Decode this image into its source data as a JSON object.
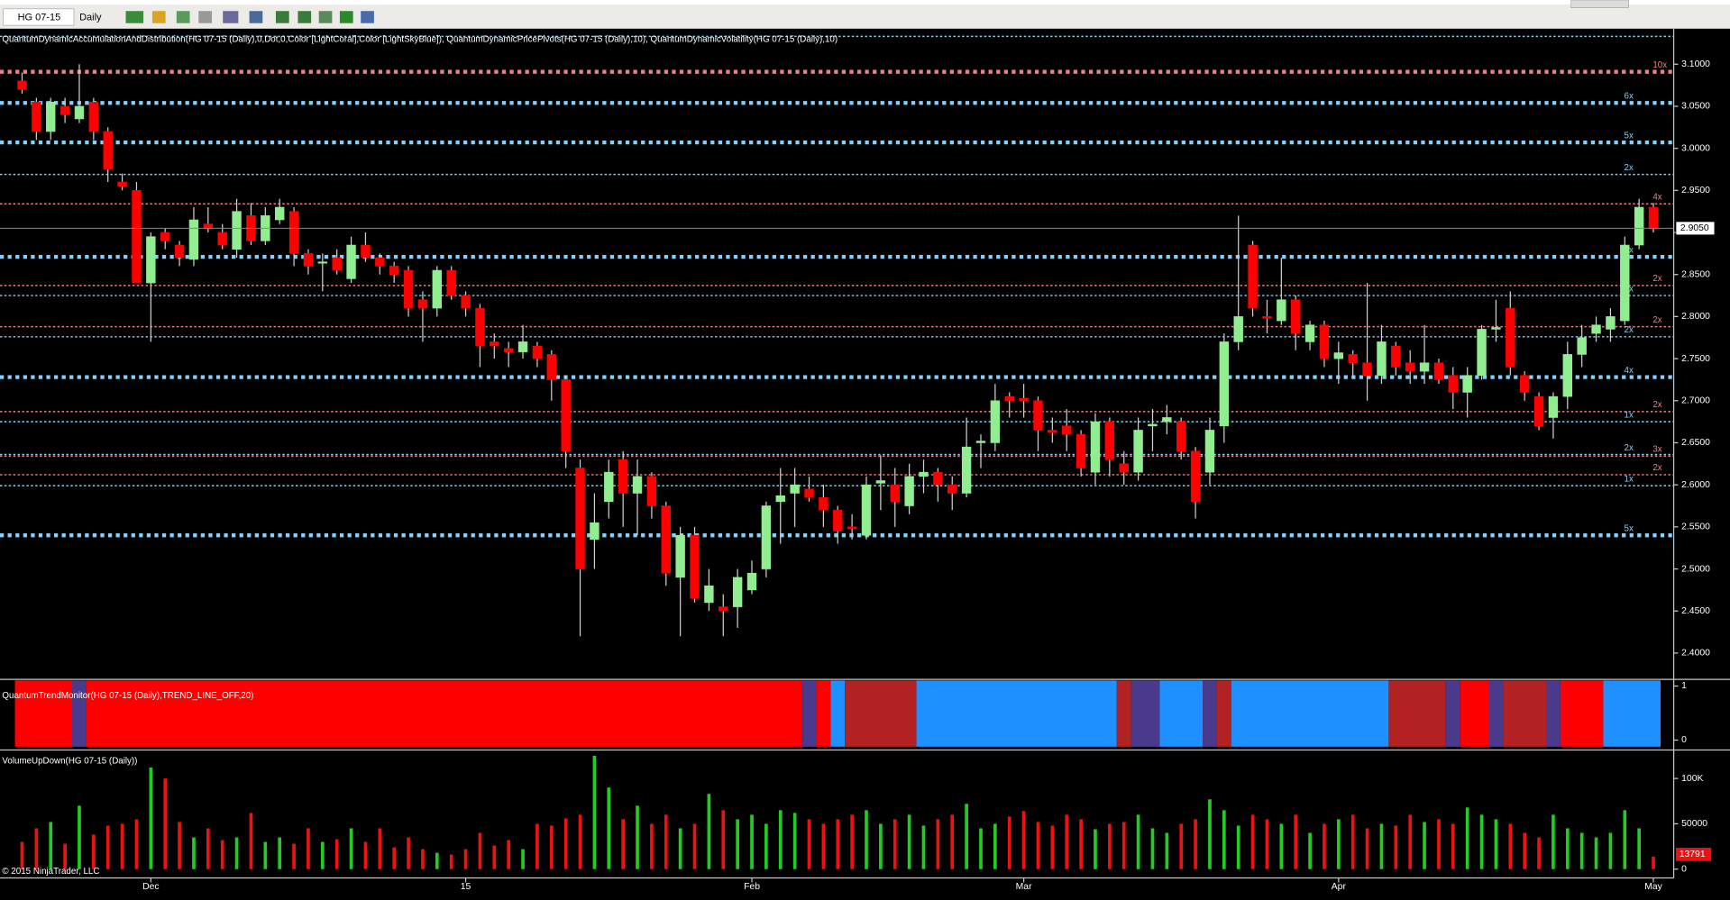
{
  "toolbar": {
    "instrument": "HG 07-15",
    "period": "Daily"
  },
  "chart_data": {
    "type": "candlestick",
    "title": "QuantumDynamicAccumulationAndDistribution(HG 07-15 (Daily),0,Dot,0,Color [LightCoral],Color [LightSkyBlue]), QuantumDynamicPricePivots(HG 07-15 (Daily),10), QuantumDynamicVolatility(HG 07-15 (Daily),10)",
    "categories": [
      null,
      null,
      null,
      null,
      null,
      null,
      null,
      null,
      null,
      "Dec",
      null,
      null,
      null,
      null,
      null,
      null,
      null,
      null,
      null,
      null,
      null,
      null,
      null,
      null,
      null,
      null,
      null,
      null,
      null,
      null,
      null,
      "15",
      null,
      null,
      null,
      null,
      null,
      null,
      null,
      null,
      null,
      null,
      null,
      null,
      null,
      null,
      null,
      null,
      null,
      null,
      null,
      "Feb",
      null,
      null,
      null,
      null,
      null,
      null,
      null,
      null,
      null,
      null,
      null,
      null,
      null,
      null,
      null,
      null,
      null,
      null,
      "Mar",
      null,
      null,
      null,
      null,
      null,
      null,
      null,
      null,
      null,
      null,
      null,
      null,
      null,
      null,
      null,
      null,
      null,
      null,
      null,
      null,
      null,
      "Apr",
      null,
      null,
      null,
      null,
      null,
      null,
      null,
      null,
      null,
      null,
      null,
      null,
      null,
      null,
      null,
      null,
      null,
      null,
      null,
      null,
      null,
      "May"
    ],
    "open": [
      3.08,
      3.055,
      3.02,
      3.05,
      3.035,
      3.055,
      3.02,
      2.96,
      2.95,
      2.84,
      2.9,
      2.885,
      2.868,
      2.91,
      2.9,
      2.88,
      2.92,
      2.89,
      2.915,
      2.925,
      2.875,
      2.865,
      2.87,
      2.845,
      2.885,
      2.87,
      2.86,
      2.855,
      2.82,
      2.81,
      2.855,
      2.825,
      2.81,
      2.77,
      2.762,
      2.758,
      2.765,
      2.755,
      2.725,
      2.62,
      2.535,
      2.58,
      2.63,
      2.59,
      2.61,
      2.575,
      2.49,
      2.54,
      2.46,
      2.455,
      2.455,
      2.475,
      2.5,
      2.58,
      2.59,
      2.595,
      2.585,
      2.57,
      2.55,
      2.54,
      2.602,
      2.6,
      2.575,
      2.61,
      2.615,
      2.6,
      2.59,
      2.65,
      2.65,
      2.705,
      2.703,
      2.7,
      2.665,
      2.67,
      2.66,
      2.615,
      2.675,
      2.625,
      2.615,
      2.67,
      2.675,
      2.675,
      2.64,
      2.615,
      2.67,
      2.77,
      2.885,
      2.8,
      2.795,
      2.82,
      2.77,
      2.79,
      2.75,
      2.755,
      2.745,
      2.73,
      2.765,
      2.745,
      2.735,
      2.745,
      2.73,
      2.71,
      2.73,
      2.785,
      2.81,
      2.73,
      2.705,
      2.68,
      2.705,
      2.755,
      2.78,
      2.785,
      2.795,
      2.885,
      2.93
    ],
    "high": [
      3.09,
      3.06,
      3.06,
      3.06,
      3.1,
      3.06,
      3.025,
      2.97,
      2.96,
      2.9,
      2.905,
      2.89,
      2.93,
      2.93,
      2.91,
      2.94,
      2.935,
      2.93,
      2.94,
      2.93,
      2.88,
      2.875,
      2.88,
      2.895,
      2.9,
      2.875,
      2.865,
      2.86,
      2.83,
      2.86,
      2.86,
      2.83,
      2.815,
      2.78,
      2.77,
      2.79,
      2.77,
      2.76,
      2.73,
      2.63,
      2.59,
      2.63,
      2.64,
      2.63,
      2.615,
      2.58,
      2.55,
      2.55,
      2.5,
      2.47,
      2.5,
      2.51,
      2.58,
      2.62,
      2.62,
      2.61,
      2.6,
      2.575,
      2.565,
      2.61,
      2.635,
      2.62,
      2.625,
      2.63,
      2.62,
      2.61,
      2.68,
      2.66,
      2.72,
      2.71,
      2.72,
      2.705,
      2.68,
      2.69,
      2.665,
      2.685,
      2.68,
      2.64,
      2.68,
      2.69,
      2.695,
      2.68,
      2.645,
      2.68,
      2.78,
      2.92,
      2.89,
      2.82,
      2.87,
      2.825,
      2.795,
      2.795,
      2.77,
      2.76,
      2.84,
      2.79,
      2.77,
      2.76,
      2.79,
      2.75,
      2.74,
      2.74,
      2.79,
      2.82,
      2.83,
      2.735,
      2.71,
      2.71,
      2.77,
      2.79,
      2.8,
      2.81,
      2.895,
      2.94,
      2.935
    ],
    "low": [
      3.065,
      3.01,
      3.01,
      3.03,
      3.03,
      3.01,
      2.96,
      2.95,
      2.84,
      2.77,
      2.88,
      2.86,
      2.86,
      2.9,
      2.88,
      2.87,
      2.885,
      2.885,
      2.91,
      2.86,
      2.85,
      2.83,
      2.85,
      2.84,
      2.865,
      2.85,
      2.84,
      2.8,
      2.77,
      2.8,
      2.82,
      2.8,
      2.74,
      2.75,
      2.74,
      2.75,
      2.74,
      2.7,
      2.62,
      2.42,
      2.5,
      2.56,
      2.55,
      2.54,
      2.56,
      2.48,
      2.42,
      2.46,
      2.45,
      2.42,
      2.43,
      2.47,
      2.49,
      2.53,
      2.55,
      2.58,
      2.55,
      2.53,
      2.535,
      2.535,
      2.57,
      2.55,
      2.565,
      2.59,
      2.58,
      2.57,
      2.585,
      2.62,
      2.64,
      2.68,
      2.68,
      2.64,
      2.65,
      2.64,
      2.61,
      2.6,
      2.61,
      2.6,
      2.605,
      2.64,
      2.66,
      2.63,
      2.56,
      2.6,
      2.65,
      2.76,
      2.8,
      2.78,
      2.79,
      2.76,
      2.76,
      2.74,
      2.72,
      2.73,
      2.7,
      2.72,
      2.73,
      2.72,
      2.72,
      2.72,
      2.69,
      2.68,
      2.725,
      2.77,
      2.73,
      2.7,
      2.665,
      2.655,
      2.69,
      2.74,
      2.77,
      2.77,
      2.79,
      2.88,
      2.9
    ],
    "close": [
      3.07,
      3.02,
      3.055,
      3.04,
      3.05,
      3.02,
      2.975,
      2.955,
      2.84,
      2.895,
      2.89,
      2.87,
      2.915,
      2.905,
      2.885,
      2.925,
      2.89,
      2.92,
      2.93,
      2.875,
      2.86,
      2.865,
      2.855,
      2.885,
      2.87,
      2.86,
      2.85,
      2.81,
      2.81,
      2.855,
      2.825,
      2.81,
      2.765,
      2.765,
      2.758,
      2.77,
      2.75,
      2.725,
      2.64,
      2.5,
      2.555,
      2.615,
      2.59,
      2.61,
      2.575,
      2.495,
      2.54,
      2.465,
      2.48,
      2.45,
      2.49,
      2.495,
      2.575,
      2.587,
      2.6,
      2.585,
      2.57,
      2.545,
      2.548,
      2.6,
      2.605,
      2.58,
      2.61,
      2.615,
      2.6,
      2.59,
      2.645,
      2.652,
      2.7,
      2.7,
      2.7,
      2.665,
      2.662,
      2.66,
      2.62,
      2.675,
      2.63,
      2.615,
      2.665,
      2.672,
      2.68,
      2.64,
      2.58,
      2.665,
      2.77,
      2.8,
      2.81,
      2.798,
      2.82,
      2.78,
      2.79,
      2.75,
      2.757,
      2.745,
      2.73,
      2.77,
      2.74,
      2.735,
      2.745,
      2.725,
      2.71,
      2.73,
      2.785,
      2.787,
      2.74,
      2.71,
      2.67,
      2.705,
      2.755,
      2.775,
      2.79,
      2.8,
      2.885,
      2.93,
      2.905
    ],
    "close_label": "2.9050",
    "up_color": "#90ee90",
    "down_color": "#ff0000",
    "ylim": [
      2.37,
      3.137
    ],
    "yticks": [
      {
        "value": 3.1,
        "label": "3.1000"
      },
      {
        "value": 3.05,
        "label": "3.0500"
      },
      {
        "value": 3.0,
        "label": "3.0000"
      },
      {
        "value": 2.95,
        "label": "2.9500"
      },
      {
        "value": 2.9,
        "label": "2.9000"
      },
      {
        "value": 2.85,
        "label": "2.8500"
      },
      {
        "value": 2.8,
        "label": "2.8000"
      },
      {
        "value": 2.75,
        "label": "2.7500"
      },
      {
        "value": 2.7,
        "label": "2.7000"
      },
      {
        "value": 2.65,
        "label": "2.6500"
      },
      {
        "value": 2.6,
        "label": "2.6000"
      },
      {
        "value": 2.55,
        "label": "2.5500"
      },
      {
        "value": 2.5,
        "label": "2.5000"
      },
      {
        "value": 2.45,
        "label": "2.4500"
      },
      {
        "value": 2.4,
        "label": "2.4000"
      }
    ],
    "levels": [
      {
        "price": 3.091,
        "label": "10x",
        "color": "#f08080",
        "weight": "thick"
      },
      {
        "price": 3.054,
        "label": "6x",
        "color": "#87cefa",
        "weight": "thick"
      },
      {
        "price": 3.007,
        "label": "5x",
        "color": "#87cefa",
        "weight": "thick"
      },
      {
        "price": 2.969,
        "label": "2x",
        "color": "#87cefa",
        "weight": "thin"
      },
      {
        "price": 2.934,
        "label": "4x",
        "color": "#f08080",
        "weight": "thin"
      },
      {
        "price": 2.871,
        "label": "3x",
        "color": "#87cefa",
        "weight": "thick"
      },
      {
        "price": 2.837,
        "label": "2x",
        "color": "#f08080",
        "weight": "thin"
      },
      {
        "price": 2.825,
        "label": "1x",
        "color": "#87cefa",
        "weight": "thin"
      },
      {
        "price": 2.788,
        "label": "2x",
        "color": "#f08080",
        "weight": "thin"
      },
      {
        "price": 2.776,
        "label": "2x",
        "color": "#87cefa",
        "weight": "thin"
      },
      {
        "price": 2.728,
        "label": "4x",
        "color": "#87cefa",
        "weight": "thick"
      },
      {
        "price": 2.687,
        "label": "2x",
        "color": "#f08080",
        "weight": "thin"
      },
      {
        "price": 2.675,
        "label": "1x",
        "color": "#87cefa",
        "weight": "thin"
      },
      {
        "price": 2.636,
        "label": "2x",
        "color": "#87cefa",
        "weight": "thin"
      },
      {
        "price": 2.634,
        "label": "3x",
        "color": "#f08080",
        "weight": "thin"
      },
      {
        "price": 2.612,
        "label": "2x",
        "color": "#f08080",
        "weight": "thin"
      },
      {
        "price": 2.599,
        "label": "1x",
        "color": "#87cefa",
        "weight": "thin"
      },
      {
        "price": 2.54,
        "label": "5x",
        "color": "#87cefa",
        "weight": "thick"
      }
    ],
    "trend": {
      "title": "QuantumTrendMonitor(HG 07-15 (Daily),TREND_LINE_OFF,20)",
      "ylim": [
        0,
        1
      ],
      "yticks": [
        1,
        0
      ],
      "segments": [
        {
          "color": "#ff0000",
          "bars": 4
        },
        {
          "color": "#4b3a8c",
          "bars": 1
        },
        {
          "color": "#ff0000",
          "bars": 50
        },
        {
          "color": "#4b3a8c",
          "bars": 1
        },
        {
          "color": "#ff0000",
          "bars": 1
        },
        {
          "color": "#1e90ff",
          "bars": 1
        },
        {
          "color": "#b22222",
          "bars": 5
        },
        {
          "color": "#1e90ff",
          "bars": 14
        },
        {
          "color": "#b22222",
          "bars": 1
        },
        {
          "color": "#4b3a8c",
          "bars": 2
        },
        {
          "color": "#1e90ff",
          "bars": 3
        },
        {
          "color": "#4b3a8c",
          "bars": 1
        },
        {
          "color": "#b22222",
          "bars": 1
        },
        {
          "color": "#1e90ff",
          "bars": 11
        },
        {
          "color": "#b22222",
          "bars": 4
        },
        {
          "color": "#4b3a8c",
          "bars": 1
        },
        {
          "color": "#ff0000",
          "bars": 2
        },
        {
          "color": "#4b3a8c",
          "bars": 1
        },
        {
          "color": "#b22222",
          "bars": 3
        },
        {
          "color": "#4b3a8c",
          "bars": 1
        },
        {
          "color": "#ff0000",
          "bars": 3
        },
        {
          "color": "#1e90ff",
          "bars": 4
        }
      ]
    },
    "volume": {
      "title": "VolumeUpDown(HG 07-15 (Daily))",
      "ylim": [
        0,
        129000
      ],
      "yticks": [
        {
          "value": 100000,
          "label": "100K"
        },
        50000,
        0
      ],
      "values": [
        30000,
        45000,
        52000,
        28000,
        70000,
        38000,
        48000,
        50000,
        55000,
        112000,
        100000,
        52000,
        35000,
        45000,
        32000,
        35000,
        62000,
        30000,
        35000,
        28000,
        45000,
        30000,
        33000,
        45000,
        30000,
        45000,
        24000,
        35000,
        22000,
        18000,
        16000,
        22000,
        40000,
        26000,
        32000,
        22000,
        50000,
        48000,
        56000,
        60000,
        125000,
        90000,
        55000,
        70000,
        50000,
        60000,
        45000,
        50000,
        83000,
        65000,
        55000,
        60000,
        50000,
        65000,
        62000,
        55000,
        50000,
        55000,
        60000,
        65000,
        50000,
        55000,
        60000,
        48000,
        55000,
        60000,
        72000,
        45000,
        50000,
        58000,
        64000,
        52000,
        48000,
        60000,
        55000,
        44000,
        50000,
        52000,
        60000,
        45000,
        40000,
        50000,
        55000,
        77000,
        65000,
        48000,
        60000,
        55000,
        50000,
        60000,
        40000,
        50000,
        55000,
        60000,
        45000,
        50000,
        48000,
        60000,
        52000,
        55000,
        50000,
        68000,
        60000,
        55000,
        50000,
        40000,
        35000,
        60000,
        45000,
        40000,
        35000,
        40000,
        65000,
        45000,
        13791
      ]
    },
    "copyright": "© 2015 NinjaTrader, LLC"
  }
}
